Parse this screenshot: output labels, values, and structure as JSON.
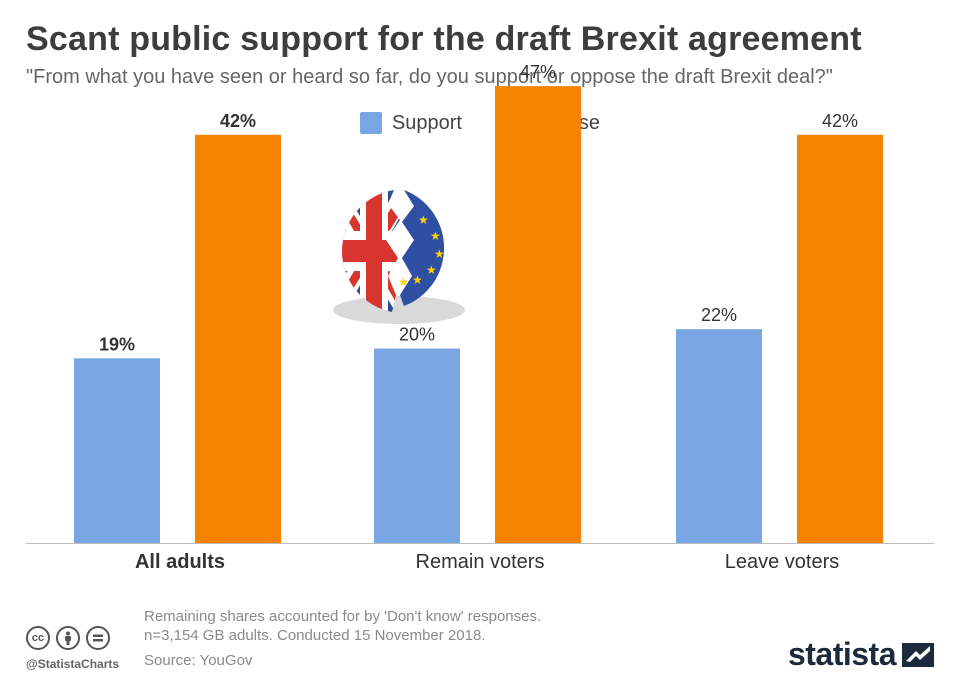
{
  "title": "Scant public support for the draft Brexit agreement",
  "subtitle": "\"From what you have seen or heard so far, do you support or oppose the draft Brexit deal?\"",
  "legend": [
    {
      "label": "Support",
      "color": "#79a6e2"
    },
    {
      "label": "Oppose",
      "color": "#f58200"
    }
  ],
  "chart_data": {
    "type": "bar",
    "categories": [
      "All adults",
      "Remain voters",
      "Leave voters"
    ],
    "series": [
      {
        "name": "Support",
        "values": [
          19,
          20,
          22
        ],
        "labels": [
          "19%",
          "20%",
          "22%"
        ],
        "color": "#79a6e2"
      },
      {
        "name": "Oppose",
        "values": [
          42,
          47,
          42
        ],
        "labels": [
          "42%",
          "47%",
          "42%"
        ],
        "color": "#f58200"
      }
    ],
    "ylim": [
      0,
      50
    ],
    "grid": false,
    "legend_position": "top-center"
  },
  "footer": {
    "note_line1": "Remaining shares accounted for by 'Don't know' responses.",
    "note_line2": "n=3,154 GB adults. Conducted 15 November 2018.",
    "source": "Source: YouGov",
    "handle": "@StatistaCharts",
    "brand": "statista"
  },
  "icons": {
    "cc": "creative-commons-icon",
    "by": "attribution-icon",
    "nd": "no-derivatives-icon",
    "illustration": "brexit-split-flag-illustration",
    "brand_logo": "statista-logo-icon"
  }
}
